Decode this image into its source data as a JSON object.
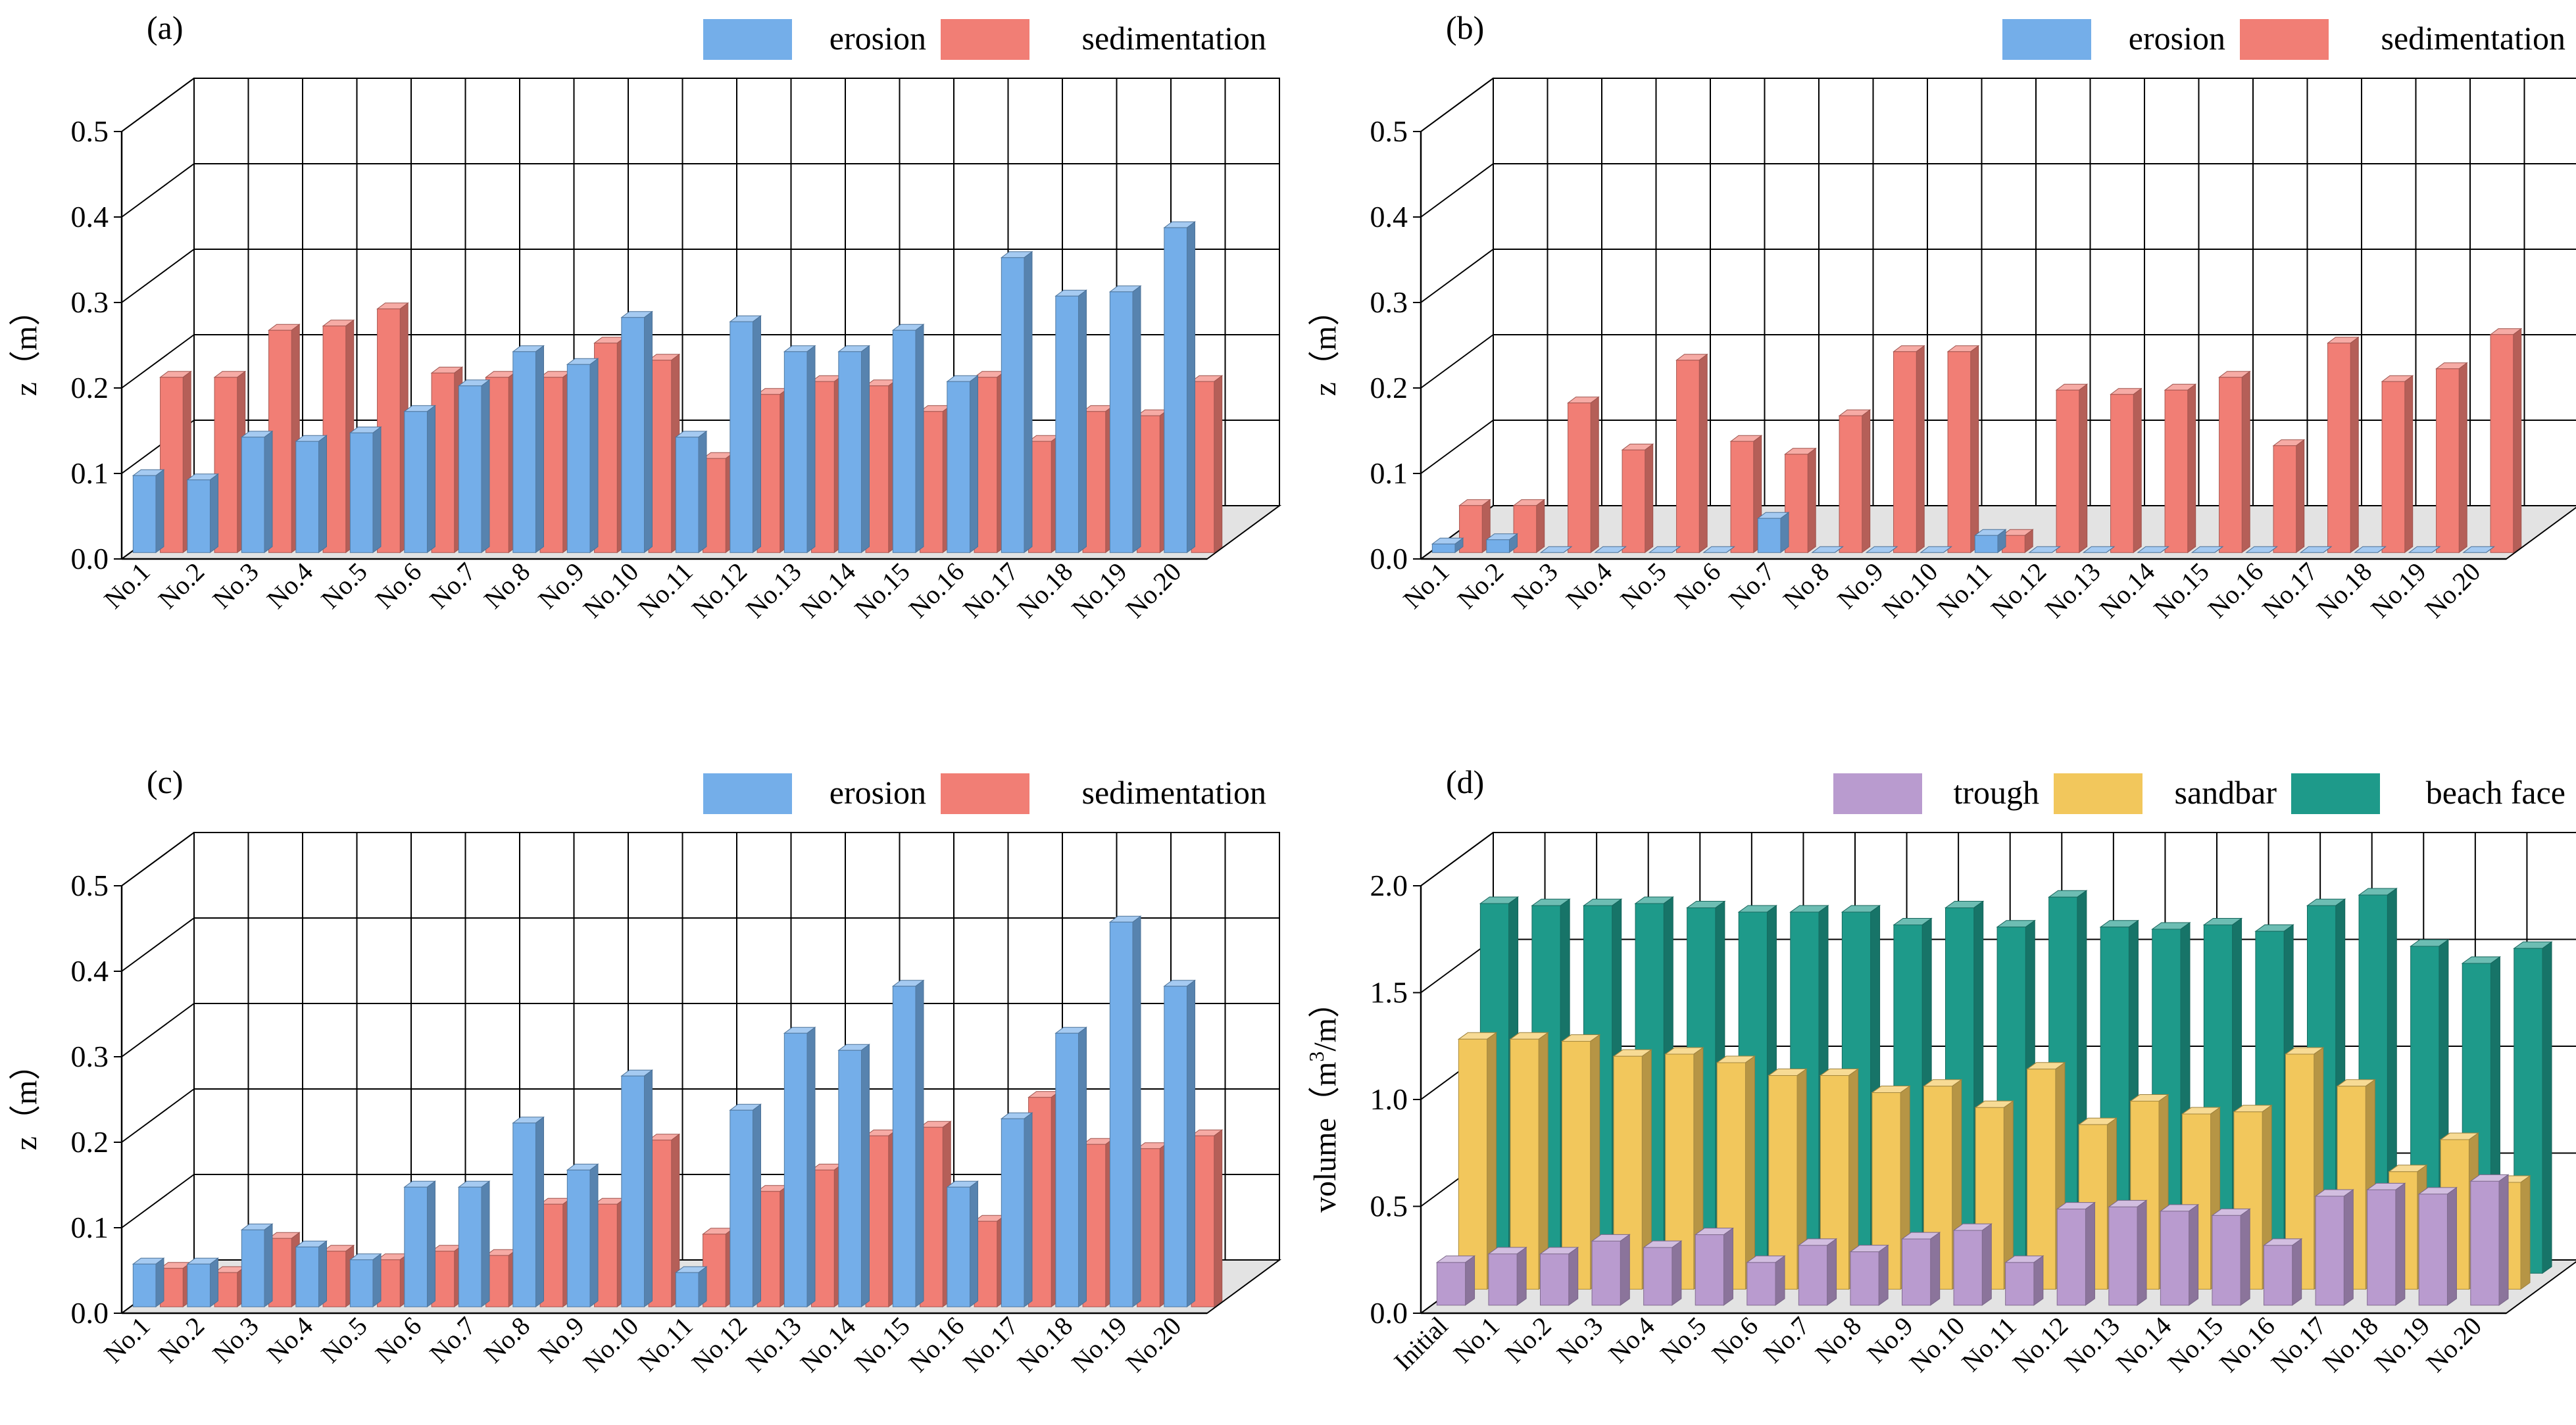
{
  "chart_data": [
    {
      "type": "bar",
      "panel_label": "(a)",
      "ylabel": "z（m）",
      "ylim": [
        0,
        0.5
      ],
      "yticks": [
        "0.0",
        "0.1",
        "0.2",
        "0.3",
        "0.4",
        "0.5"
      ],
      "categories": [
        "No.1",
        "No.2",
        "No.3",
        "No.4",
        "No.5",
        "No.6",
        "No.7",
        "No.8",
        "No.9",
        "No.10",
        "No.11",
        "No.12",
        "No.13",
        "No.14",
        "No.15",
        "No.16",
        "No.17",
        "No.18",
        "No.19",
        "No.20"
      ],
      "legend_position": "top-right",
      "series": [
        {
          "name": "erosion",
          "color": "#74AEE9",
          "values": [
            0.09,
            0.085,
            0.135,
            0.13,
            0.14,
            0.165,
            0.195,
            0.235,
            0.22,
            0.275,
            0.135,
            0.27,
            0.235,
            0.235,
            0.26,
            0.2,
            0.345,
            0.3,
            0.305,
            0.38
          ]
        },
        {
          "name": "sedimentation",
          "color": "#F17E75",
          "values": [
            0.205,
            0.205,
            0.26,
            0.265,
            0.285,
            0.21,
            0.205,
            0.205,
            0.245,
            0.225,
            0.11,
            0.185,
            0.2,
            0.195,
            0.165,
            0.205,
            0.13,
            0.165,
            0.16,
            0.2
          ]
        }
      ]
    },
    {
      "type": "bar",
      "panel_label": "(b)",
      "ylabel": "z（m）",
      "ylim": [
        0,
        0.5
      ],
      "yticks": [
        "0.0",
        "0.1",
        "0.2",
        "0.3",
        "0.4",
        "0.5"
      ],
      "categories": [
        "No.1",
        "No.2",
        "No.3",
        "No.4",
        "No.5",
        "No.6",
        "No.7",
        "No.8",
        "No.9",
        "No.10",
        "No.11",
        "No.12",
        "No.13",
        "No.14",
        "No.15",
        "No.16",
        "No.17",
        "No.18",
        "No.19",
        "No.20"
      ],
      "legend_position": "top-right",
      "series": [
        {
          "name": "erosion",
          "color": "#74AEE9",
          "values": [
            0.01,
            0.015,
            0.0,
            0.0,
            0.0,
            0.0,
            0.04,
            0.0,
            0.0,
            0.0,
            0.02,
            0.0,
            0.0,
            0.0,
            0.0,
            0.0,
            0.0,
            0.0,
            0.0,
            0.0
          ]
        },
        {
          "name": "sedimentation",
          "color": "#F17E75",
          "values": [
            0.055,
            0.055,
            0.175,
            0.12,
            0.225,
            0.13,
            0.115,
            0.16,
            0.235,
            0.235,
            0.02,
            0.19,
            0.185,
            0.19,
            0.205,
            0.125,
            0.245,
            0.2,
            0.215,
            0.255
          ]
        }
      ]
    },
    {
      "type": "bar",
      "panel_label": "(c)",
      "ylabel": "z（m）",
      "ylim": [
        0,
        0.5
      ],
      "yticks": [
        "0.0",
        "0.1",
        "0.2",
        "0.3",
        "0.4",
        "0.5"
      ],
      "categories": [
        "No.1",
        "No.2",
        "No.3",
        "No.4",
        "No.5",
        "No.6",
        "No.7",
        "No.8",
        "No.9",
        "No.10",
        "No.11",
        "No.12",
        "No.13",
        "No.14",
        "No.15",
        "No.16",
        "No.17",
        "No.18",
        "No.19",
        "No.20"
      ],
      "legend_position": "top-right",
      "series": [
        {
          "name": "erosion",
          "color": "#74AEE9",
          "values": [
            0.05,
            0.05,
            0.09,
            0.07,
            0.055,
            0.14,
            0.14,
            0.215,
            0.16,
            0.27,
            0.04,
            0.23,
            0.32,
            0.3,
            0.375,
            0.14,
            0.22,
            0.32,
            0.45,
            0.375
          ]
        },
        {
          "name": "sedimentation",
          "color": "#F17E75",
          "values": [
            0.045,
            0.04,
            0.08,
            0.065,
            0.055,
            0.065,
            0.06,
            0.12,
            0.12,
            0.195,
            0.085,
            0.135,
            0.16,
            0.2,
            0.21,
            0.1,
            0.245,
            0.19,
            0.185,
            0.2
          ]
        }
      ]
    },
    {
      "type": "bar",
      "panel_label": "(d)",
      "ylabel_main": "volume（m",
      "ylabel_sup": "3",
      "ylabel_tail": "/m）",
      "ylim": [
        0,
        2.0
      ],
      "yticks": [
        "0.0",
        "0.5",
        "1.0",
        "1.5",
        "2.0"
      ],
      "categories": [
        "Initial",
        "No.1",
        "No.2",
        "No.3",
        "No.4",
        "No.5",
        "No.6",
        "No.7",
        "No.8",
        "No.9",
        "No.10",
        "No.11",
        "No.12",
        "No.13",
        "No.14",
        "No.15",
        "No.16",
        "No.17",
        "No.18",
        "No.19",
        "No.20"
      ],
      "legend_position": "top-right",
      "series": [
        {
          "name": "trough",
          "color": "#B99BCF",
          "values": [
            0.2,
            0.24,
            0.24,
            0.3,
            0.27,
            0.33,
            0.2,
            0.28,
            0.25,
            0.31,
            0.35,
            0.2,
            0.45,
            0.46,
            0.44,
            0.42,
            0.28,
            0.51,
            0.54,
            0.52,
            0.58
          ]
        },
        {
          "name": "sandbar",
          "color": "#F2C75C",
          "values": [
            1.17,
            1.17,
            1.16,
            1.09,
            1.1,
            1.06,
            1.0,
            1.0,
            0.92,
            0.95,
            0.85,
            1.03,
            0.77,
            0.88,
            0.82,
            0.83,
            1.1,
            0.95,
            0.55,
            0.7,
            0.5
          ]
        },
        {
          "name": "beach face",
          "color": "#1E9A8A",
          "values": [
            1.73,
            1.72,
            1.72,
            1.73,
            1.71,
            1.69,
            1.69,
            1.69,
            1.63,
            1.71,
            1.62,
            1.76,
            1.62,
            1.61,
            1.63,
            1.6,
            1.72,
            1.77,
            1.53,
            1.45,
            1.52
          ]
        }
      ]
    }
  ]
}
